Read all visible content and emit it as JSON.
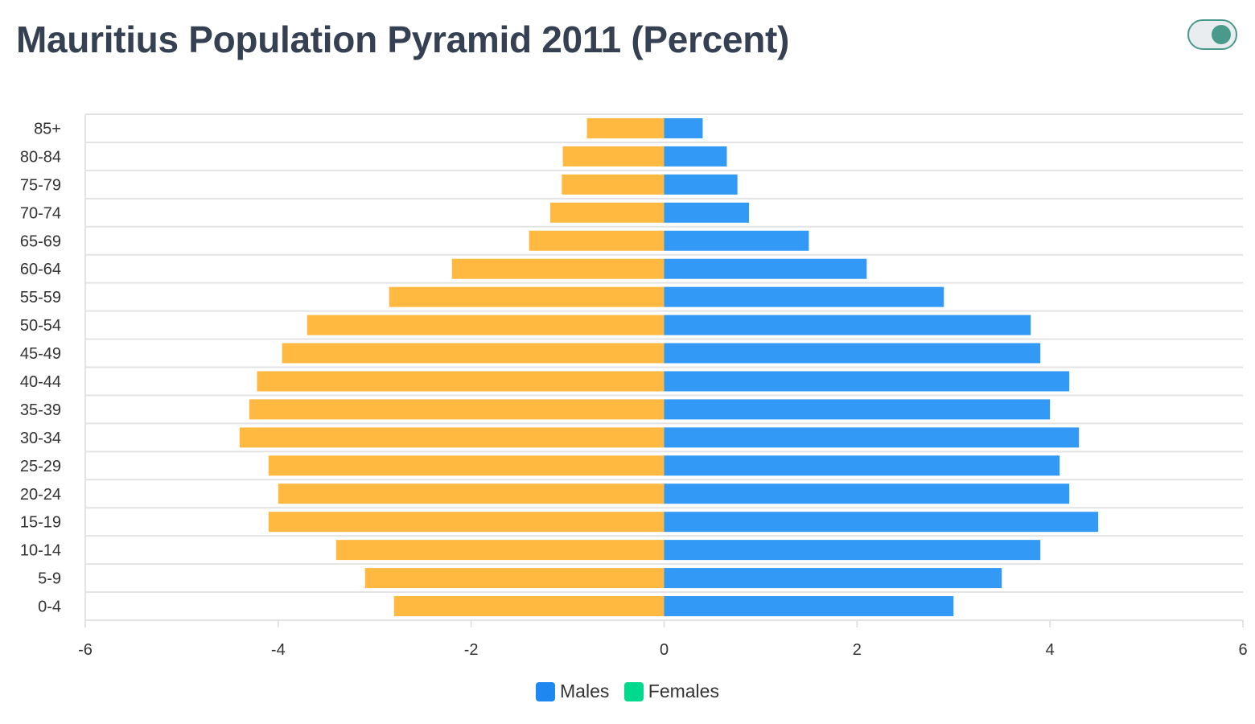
{
  "header": {
    "title": "Mauritius Population Pyramid 2011 (Percent)"
  },
  "toggle": {
    "state": "on"
  },
  "colors": {
    "males_legend": "#1e88f0",
    "females_legend": "#00d98e",
    "right_bars": "#3399f7",
    "left_bars": "#ffb940",
    "toggle": "#4a9a8c"
  },
  "chart_data": {
    "type": "bar",
    "orientation": "horizontal",
    "categories": [
      "85+",
      "80-84",
      "75-79",
      "70-74",
      "65-69",
      "60-64",
      "55-59",
      "50-54",
      "45-49",
      "40-44",
      "35-39",
      "30-34",
      "25-29",
      "20-24",
      "15-19",
      "10-14",
      "5-9",
      "0-4"
    ],
    "series": [
      {
        "name": "Males",
        "values": [
          0.4,
          0.65,
          0.76,
          0.88,
          1.5,
          2.1,
          2.9,
          3.8,
          3.9,
          4.2,
          4.0,
          4.3,
          4.1,
          4.2,
          4.5,
          3.9,
          3.5,
          3.0
        ]
      },
      {
        "name": "Females",
        "values": [
          -0.8,
          -1.05,
          -1.06,
          -1.18,
          -1.4,
          -2.2,
          -2.85,
          -3.7,
          -3.96,
          -4.22,
          -4.3,
          -4.4,
          -4.1,
          -4.0,
          -4.1,
          -3.4,
          -3.1,
          -2.8
        ]
      }
    ],
    "xlim": [
      -6,
      6
    ],
    "xticks": [
      "-6",
      "-4",
      "-2",
      "0",
      "2",
      "4",
      "6"
    ],
    "grid": true,
    "legend": "bottom-center"
  },
  "legend": {
    "males_label": "Males",
    "females_label": "Females"
  }
}
